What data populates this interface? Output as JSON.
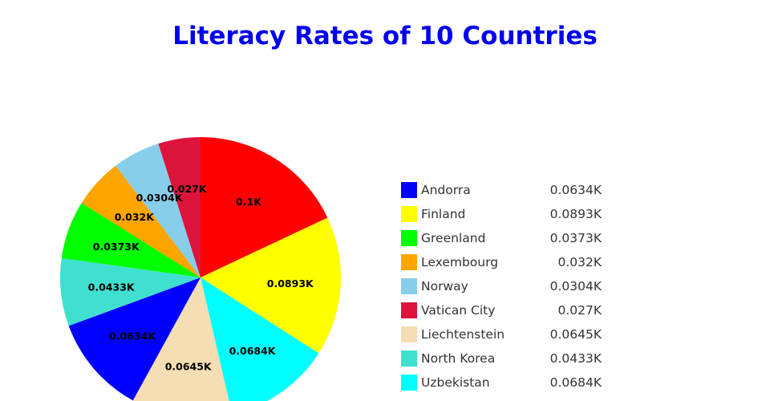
{
  "chart_data": {
    "type": "pie",
    "title": "Literacy Rates of 10 Countries",
    "slices": [
      {
        "label": "Vatican City",
        "value": 0.1,
        "display": "0.1K",
        "color": "#ff0000"
      },
      {
        "label": "Finland",
        "value": 0.0893,
        "display": "0.0893K",
        "color": "#ffff00"
      },
      {
        "label": "Uzbekistan",
        "value": 0.0684,
        "display": "0.0684K",
        "color": "#00ffff"
      },
      {
        "label": "Liechtenstein",
        "value": 0.0645,
        "display": "0.0645K",
        "color": "#f5deb3"
      },
      {
        "label": "Andorra",
        "value": 0.0634,
        "display": "0.0634K",
        "color": "#0000ff"
      },
      {
        "label": "North Korea",
        "value": 0.0433,
        "display": "0.0433K",
        "color": "#40e0d0"
      },
      {
        "label": "Greenland",
        "value": 0.0373,
        "display": "0.0373K",
        "color": "#00ff00"
      },
      {
        "label": "Lexembourg",
        "value": 0.032,
        "display": "0.032K",
        "color": "#ffa500"
      },
      {
        "label": "Norway",
        "value": 0.0304,
        "display": "0.0304K",
        "color": "#87ceeb"
      },
      {
        "label": "Vatican City",
        "value": 0.027,
        "display": "0.027K",
        "color": "#dc143c"
      }
    ],
    "legend": [
      {
        "label": "Andorra",
        "display": "0.0634K",
        "color": "#0000ff"
      },
      {
        "label": "Finland",
        "display": "0.0893K",
        "color": "#ffff00"
      },
      {
        "label": "Greenland",
        "display": "0.0373K",
        "color": "#00ff00"
      },
      {
        "label": "Lexembourg",
        "display": "0.032K",
        "color": "#ffa500"
      },
      {
        "label": "Norway",
        "display": "0.0304K",
        "color": "#87ceeb"
      },
      {
        "label": "Vatican City",
        "display": "0.027K",
        "color": "#dc143c"
      },
      {
        "label": "Liechtenstein",
        "display": "0.0645K",
        "color": "#f5deb3"
      },
      {
        "label": "North Korea",
        "display": "0.0433K",
        "color": "#40e0d0"
      },
      {
        "label": "Uzbekistan",
        "display": "0.0684K",
        "color": "#00ffff"
      }
    ],
    "legend_placement": "right",
    "title_color": "#0000ee"
  }
}
